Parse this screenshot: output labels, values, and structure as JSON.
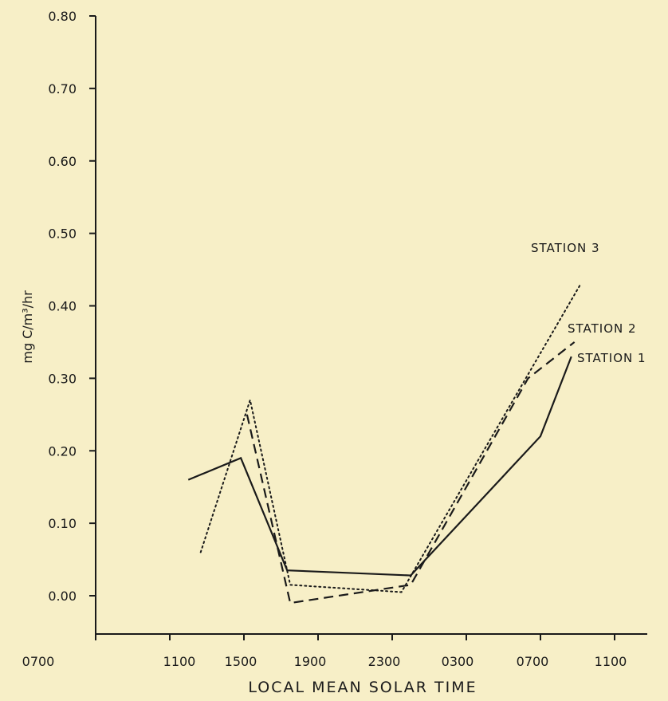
{
  "chart_data": {
    "type": "line",
    "title": "",
    "xlabel": "LOCAL MEAN SOLAR TIME",
    "ylabel": "mg C/m³/hr",
    "ylim": [
      -0.05,
      0.8
    ],
    "grid": false,
    "x_ticks": [
      "0700",
      "1100",
      "1500",
      "1900",
      "2300",
      "0300",
      "0700",
      "1100"
    ],
    "y_ticks": [
      "0.00",
      "0.10",
      "0.20",
      "0.30",
      "0.40",
      "0.50",
      "0.60",
      "0.70",
      "0.80"
    ],
    "series": [
      {
        "name": "STATION 1",
        "style": "solid",
        "color": "#1a1a1a",
        "points": [
          [
            "1200",
            0.16
          ],
          [
            "1450",
            0.19
          ],
          [
            "1720",
            0.035
          ],
          [
            "2400",
            0.028
          ],
          [
            "0700",
            0.22
          ],
          [
            "0840",
            0.33
          ]
        ]
      },
      {
        "name": "STATION 2",
        "style": "dashed",
        "color": "#1a1a1a",
        "points": [
          [
            "1510",
            0.25
          ],
          [
            "1730",
            -0.01
          ],
          [
            "2400",
            0.015
          ],
          [
            "0620",
            0.3
          ],
          [
            "0850",
            0.35
          ]
        ]
      },
      {
        "name": "STATION 3",
        "style": "dotted",
        "color": "#1a1a1a",
        "points": [
          [
            "1240",
            0.06
          ],
          [
            "1520",
            0.27
          ],
          [
            "1730",
            0.015
          ],
          [
            "2330",
            0.005
          ],
          [
            "0910",
            0.43
          ]
        ]
      }
    ]
  }
}
